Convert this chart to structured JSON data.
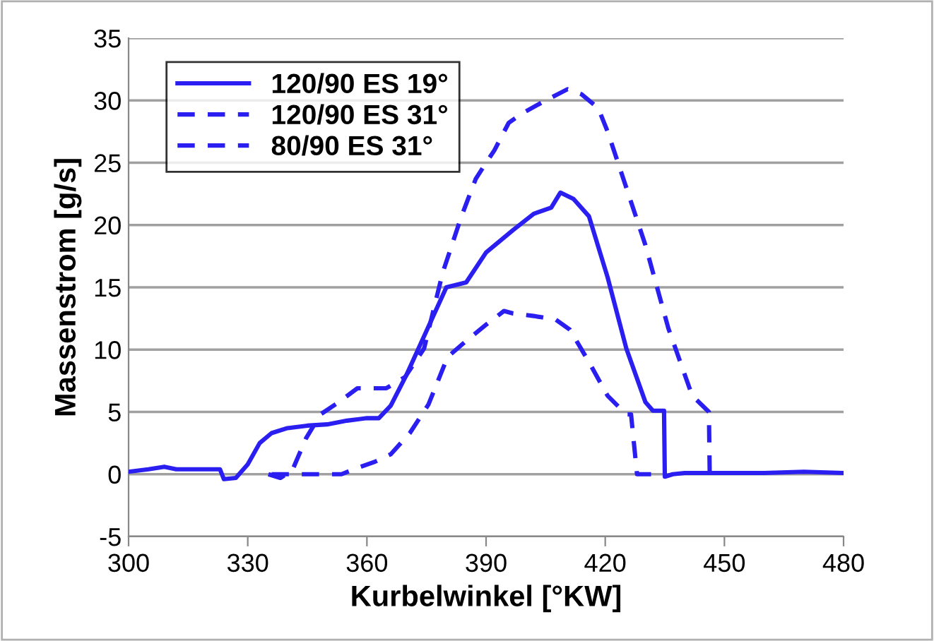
{
  "chart_data": {
    "type": "line",
    "xlabel": "Kurbelwinkel [°KW]",
    "ylabel": "Massenstrom [g/s]",
    "xlim": [
      300,
      480
    ],
    "xticks": [
      300,
      330,
      360,
      390,
      420,
      450,
      480
    ],
    "ylim": [
      -5,
      35
    ],
    "yticks": [
      -5,
      0,
      5,
      10,
      15,
      20,
      25,
      30,
      35
    ],
    "grid": "y",
    "legend": "top left",
    "marker": "none",
    "series": [
      {
        "name": "120/90 ES 19°",
        "color": "#2a1ff0",
        "line_style": "solid",
        "x": [
          300,
          305,
          309,
          312,
          316,
          320,
          323,
          324,
          327,
          330,
          333,
          336,
          340,
          345,
          350,
          355,
          360,
          363,
          366,
          370,
          375,
          380,
          385,
          390,
          396.8,
          402,
          406.4,
          408.7,
          412,
          415.9,
          420.6,
          425.3,
          430.1,
          432,
          434.8,
          435,
          437,
          440,
          450,
          460,
          470,
          480
        ],
        "values": [
          0.2,
          0.4,
          0.6,
          0.4,
          0.4,
          0.4,
          0.4,
          -0.4,
          -0.3,
          0.8,
          2.5,
          3.3,
          3.7,
          3.9,
          4.0,
          4.3,
          4.5,
          4.5,
          5.5,
          8,
          11.5,
          15,
          15.4,
          17.8,
          19.6,
          20.9,
          21.4,
          22.6,
          22.1,
          20.7,
          15.8,
          10.1,
          5.8,
          5.1,
          5.1,
          -0.2,
          0,
          0.1,
          0.1,
          0.1,
          0.2,
          0.1
        ]
      },
      {
        "name": "120/90 ES 31°",
        "color": "#2a1ff0",
        "line_style": "dashed",
        "x": [
          335.2,
          338.2,
          341.2,
          344.7,
          348.3,
          353,
          357.6,
          364.9,
          369.6,
          374.4,
          379.1,
          383.8,
          387.4,
          389.6,
          392.1,
          395.7,
          399.3,
          405,
          410.5,
          414,
          418.2,
          420.6,
          425.3,
          430.1,
          435.9,
          441.9,
          446.1,
          446.3
        ],
        "values": [
          0,
          -0.3,
          0.3,
          2.9,
          4.8,
          5.8,
          6.9,
          6.9,
          7.8,
          10.1,
          16.2,
          20.7,
          23.7,
          24.8,
          26,
          28.2,
          29,
          30,
          30.9,
          30.5,
          29.4,
          27.5,
          23,
          18.4,
          11.7,
          6.3,
          5.0,
          0
        ]
      },
      {
        "name": "80/90 ES 31°",
        "color": "#2a1ff0",
        "line_style": "dashed",
        "x": [
          336,
          345,
          353.6,
          357.6,
          362,
          366,
          370.8,
          375.5,
          380.3,
          385,
          390,
          394.5,
          396.8,
          402,
          407.6,
          411.1,
          415.9,
          420.6,
          425.3,
          426.5,
          428,
          434
        ],
        "values": [
          0,
          0,
          0,
          0.5,
          1.0,
          1.6,
          3.3,
          5.6,
          9.4,
          10.7,
          12.0,
          13.1,
          12.9,
          12.7,
          12.4,
          11.6,
          9.0,
          6.3,
          4.8,
          4.8,
          0,
          0
        ]
      }
    ]
  }
}
